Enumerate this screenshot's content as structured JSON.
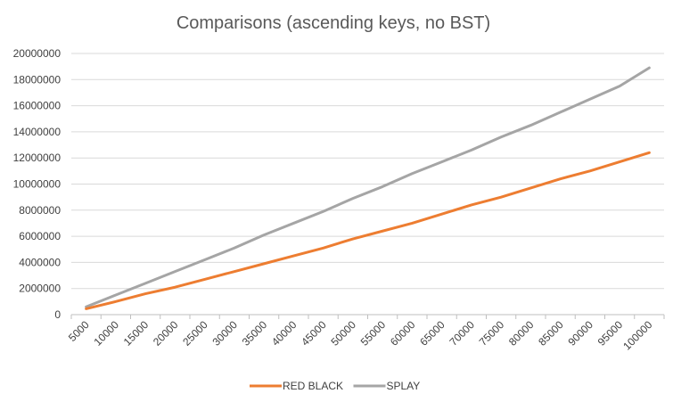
{
  "chart_data": {
    "type": "line",
    "title": "Comparisons (ascending keys, no BST)",
    "xlabel": "",
    "ylabel": "",
    "categories": [
      "5000",
      "10000",
      "15000",
      "20000",
      "25000",
      "30000",
      "35000",
      "40000",
      "45000",
      "50000",
      "55000",
      "60000",
      "65000",
      "70000",
      "75000",
      "80000",
      "85000",
      "90000",
      "95000",
      "100000"
    ],
    "ylim": [
      0,
      20000000
    ],
    "yticks": [
      "0",
      "2000000",
      "4000000",
      "6000000",
      "8000000",
      "10000000",
      "12000000",
      "14000000",
      "16000000",
      "18000000",
      "20000000"
    ],
    "grid": true,
    "legend_position": "bottom",
    "series": [
      {
        "name": "RED BLACK",
        "color": "#ED7D31",
        "values": [
          450000,
          1000000,
          1600000,
          2100000,
          2700000,
          3300000,
          3900000,
          4500000,
          5100000,
          5800000,
          6400000,
          7000000,
          7700000,
          8400000,
          9000000,
          9700000,
          10400000,
          11000000,
          11700000,
          12400000
        ]
      },
      {
        "name": "SPLAY",
        "color": "#A5A5A5",
        "values": [
          600000,
          1500000,
          2400000,
          3300000,
          4200000,
          5100000,
          6100000,
          7000000,
          7900000,
          8900000,
          9800000,
          10800000,
          11700000,
          12600000,
          13600000,
          14500000,
          15500000,
          16500000,
          17500000,
          18900000
        ]
      }
    ]
  }
}
